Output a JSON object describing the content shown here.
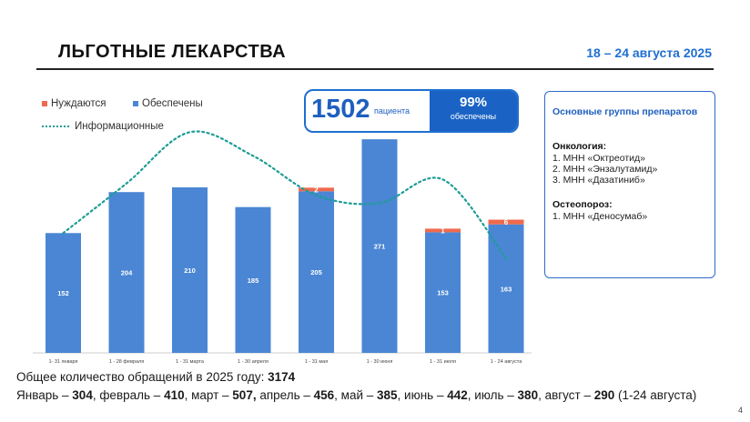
{
  "header": {
    "title": "ЛЬГОТНЫЕ ЛЕКАРСТВА",
    "date_range": "18 – 24 августа 2025"
  },
  "legend": {
    "needing": "Нуждаются",
    "provided": "Обеспечены",
    "informational": "Информационные"
  },
  "kpi": {
    "patients_value": "1502",
    "patients_label": "пациента",
    "percent_value": "99%",
    "percent_label": "обеспечены"
  },
  "side_panel": {
    "heading": "Основные группы препаратов",
    "groups": [
      {
        "name": "Онкология:",
        "items": [
          "1. МНН «Октреотид»",
          "2. МНН «Энзалутамид»",
          "3. МНН «Дазатиниб»"
        ]
      },
      {
        "name": "Остеопороз:",
        "items": [
          "1. МНН «Деносумаб»"
        ]
      }
    ]
  },
  "footer": {
    "line1_text": "Общее количество обращений  в 2025 году: ",
    "line1_total": "3174",
    "months": [
      {
        "name": "Январь – ",
        "value": "304"
      },
      {
        "name": ", февраль – ",
        "value": "410"
      },
      {
        "name": ", март  – ",
        "value": "507,"
      },
      {
        "name": " апрель – ",
        "value": "456"
      },
      {
        "name": ", май – ",
        "value": "385"
      },
      {
        "name": ", июнь – ",
        "value": "442"
      },
      {
        "name": ", июль – ",
        "value": "380"
      },
      {
        "name": ", август – ",
        "value": "290"
      }
    ],
    "months_suffix": " (1-24 августа)",
    "page_number": "4"
  },
  "colors": {
    "provided": "#4a86d4",
    "needing": "#ef6a4e",
    "informational": "#1e9c96",
    "accent": "#1f6fd1"
  },
  "chart_data": {
    "type": "bar",
    "stacked": true,
    "categories": [
      "1- 31 января",
      "1 - 28 февраля",
      "1 - 31 марта",
      "1 - 30 апреля",
      "1 - 31 мая",
      "1 - 30 июня",
      "1 - 31 июля",
      "1 - 24 августа"
    ],
    "series": [
      {
        "name": "Обеспечены",
        "values": [
          152,
          204,
          210,
          185,
          205,
          271,
          153,
          163
        ],
        "color": "#4a86d4"
      },
      {
        "name": "Нуждаются",
        "values": [
          0,
          0,
          0,
          0,
          2,
          0,
          1,
          6
        ],
        "color": "#ef6a4e"
      }
    ],
    "informational_line": {
      "name": "Информационные",
      "values": [
        152,
        215,
        280,
        250,
        200,
        190,
        220,
        120
      ],
      "style": "dotted",
      "smooth": true
    },
    "ylim": [
      0,
      300
    ],
    "legend_position": "top-left",
    "grid": false
  }
}
